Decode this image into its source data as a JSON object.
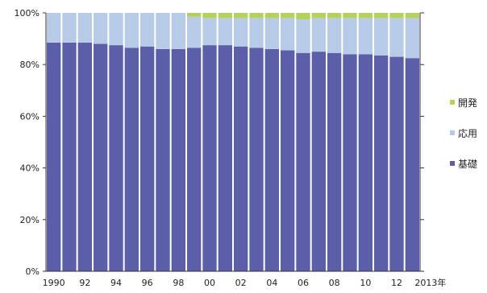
{
  "chart_data": {
    "type": "bar",
    "stacked": true,
    "percent": true,
    "categories": [
      "1990",
      "91",
      "92",
      "93",
      "94",
      "95",
      "96",
      "97",
      "98",
      "99",
      "00",
      "01",
      "02",
      "03",
      "04",
      "05",
      "06",
      "07",
      "08",
      "09",
      "10",
      "11",
      "12",
      "2013"
    ],
    "x_tick_labels": [
      "1990",
      "92",
      "94",
      "96",
      "98",
      "00",
      "02",
      "04",
      "06",
      "08",
      "10",
      "12"
    ],
    "x_end_label": "2013年",
    "y_tick_labels": [
      "0%",
      "20%",
      "40%",
      "60%",
      "80%",
      "100%"
    ],
    "ylim": [
      0,
      100
    ],
    "series": [
      {
        "name": "基礎",
        "color": "#5a5fa8",
        "values": [
          88.5,
          88.5,
          88.5,
          88.0,
          87.5,
          86.5,
          87.0,
          86.0,
          86.0,
          86.5,
          87.5,
          87.5,
          87.0,
          86.5,
          86.0,
          85.5,
          84.5,
          85.0,
          84.5,
          84.0,
          84.0,
          83.5,
          83.0,
          82.5
        ]
      },
      {
        "name": "応用",
        "color": "#b8cbe6",
        "values": [
          11.5,
          11.5,
          11.5,
          12.0,
          12.5,
          13.5,
          13.0,
          14.0,
          14.0,
          12.0,
          10.5,
          10.5,
          11.0,
          11.5,
          12.0,
          12.5,
          13.0,
          13.0,
          13.5,
          14.0,
          14.0,
          14.5,
          15.0,
          15.5
        ]
      },
      {
        "name": "開発",
        "color": "#b4d25a",
        "values": [
          0,
          0,
          0,
          0,
          0,
          0,
          0,
          0,
          0,
          1.5,
          2.0,
          2.0,
          2.0,
          2.0,
          2.0,
          2.0,
          2.5,
          2.0,
          2.0,
          2.0,
          2.0,
          2.0,
          2.0,
          2.0
        ]
      }
    ],
    "legend": [
      {
        "name": "開発",
        "color": "#b4d25a"
      },
      {
        "name": "応用",
        "color": "#b8cbe6"
      },
      {
        "name": "基礎",
        "color": "#5a5fa8"
      }
    ],
    "legend_position": "right",
    "grid": false
  }
}
